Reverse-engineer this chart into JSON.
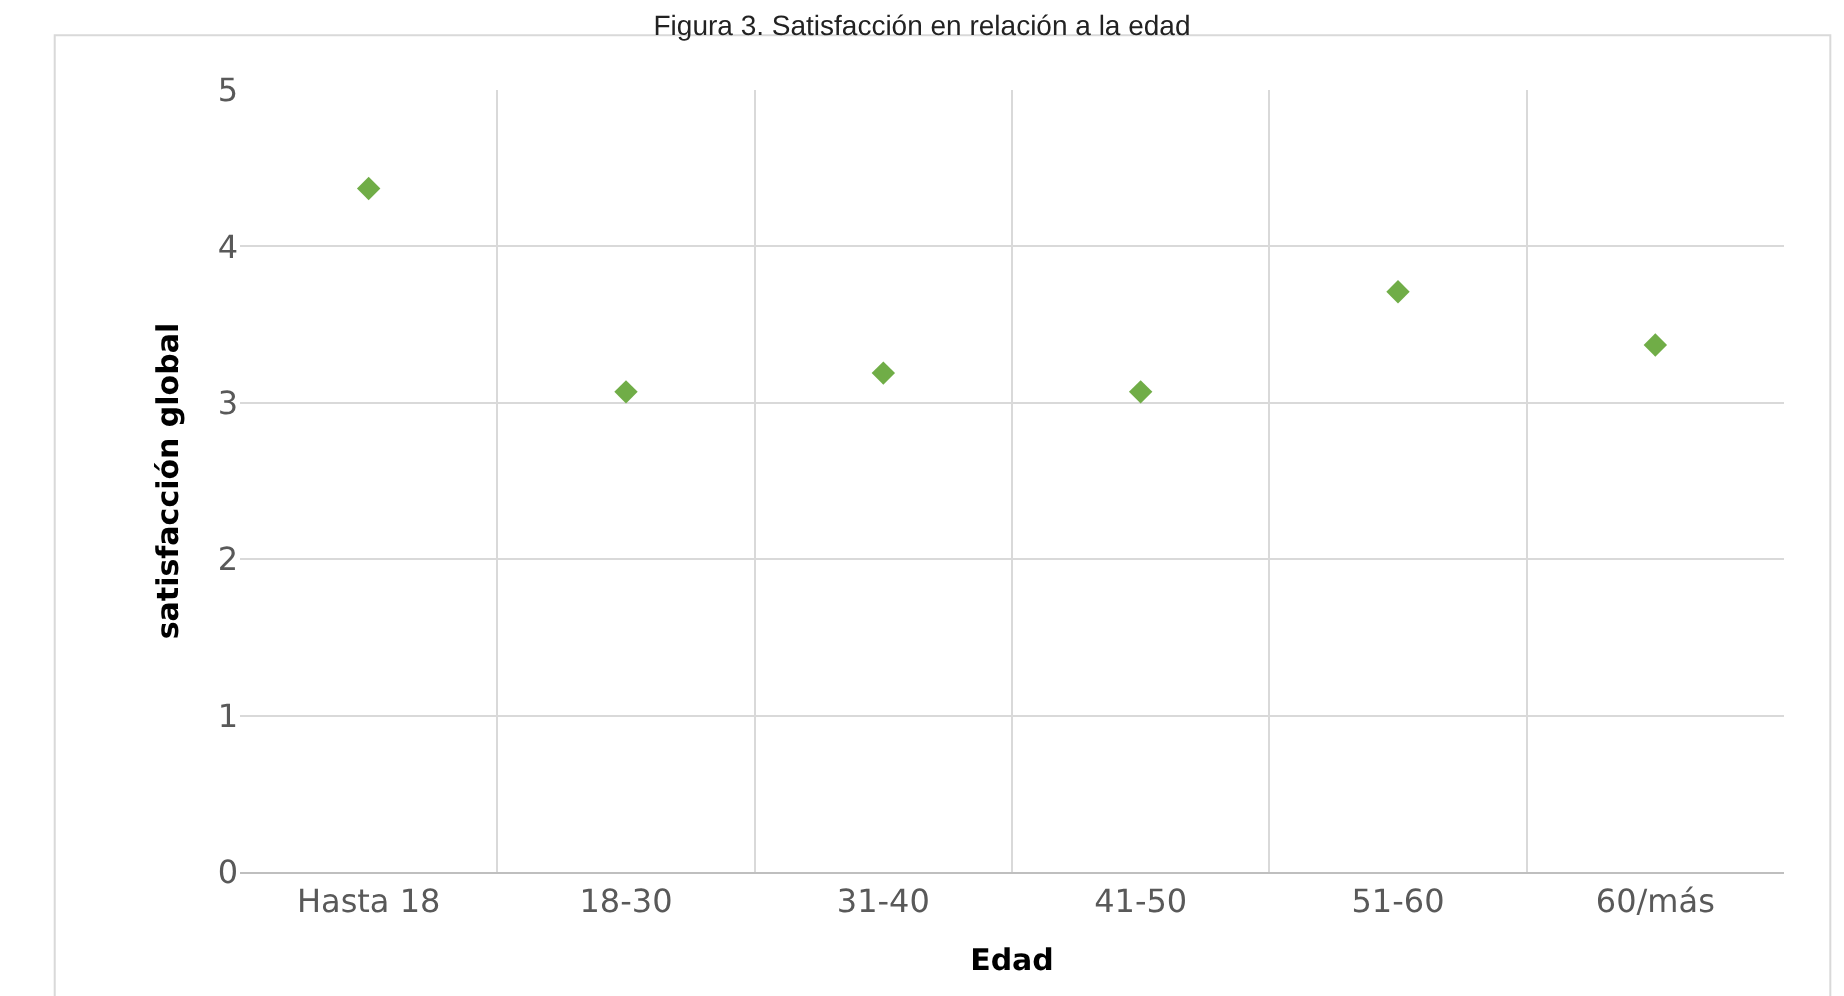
{
  "chart_data": {
    "type": "scatter",
    "title": "Figura 3. Satisfacción en relación a la edad",
    "xlabel": "Edad",
    "ylabel": "satisfacción global",
    "categories": [
      "Hasta 18",
      "18-30",
      "31-40",
      "41-50",
      "51-60",
      "60/más"
    ],
    "series": [
      {
        "color": "#70ad47",
        "values": [
          4.37,
          3.07,
          3.19,
          3.07,
          3.71,
          3.37
        ]
      }
    ],
    "ylim": [
      0,
      5
    ],
    "yticks": [
      0,
      1,
      2,
      3,
      4,
      5
    ],
    "grid": true,
    "marker": "diamond"
  }
}
